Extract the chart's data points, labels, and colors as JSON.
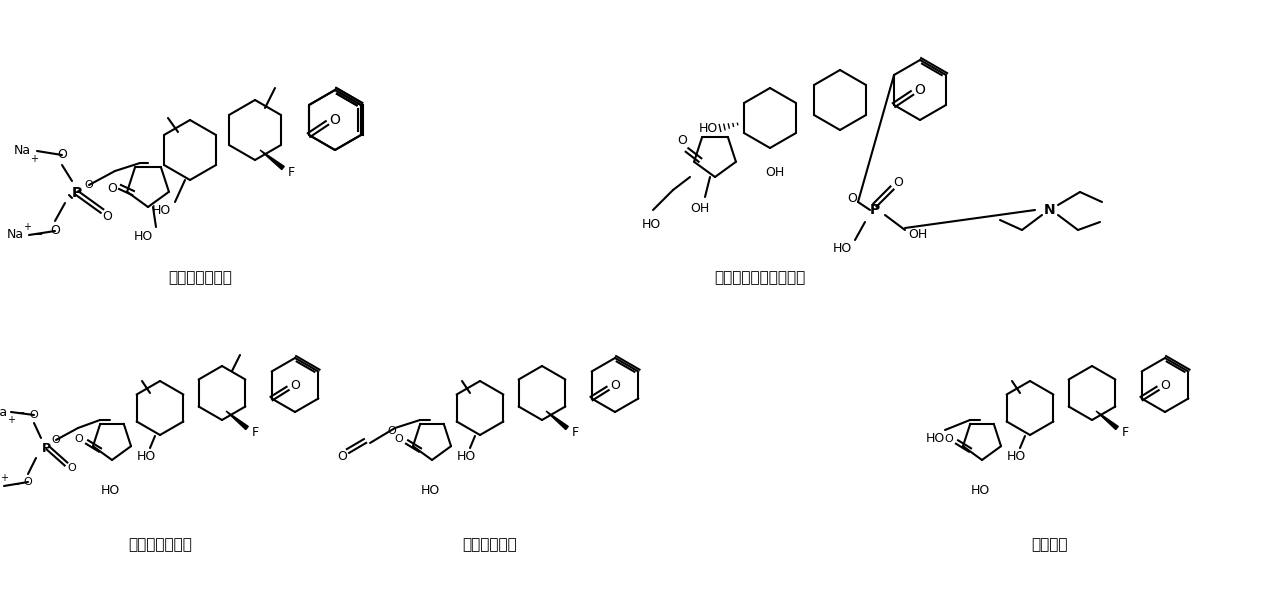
{
  "background": "#ffffff",
  "labels": [
    "地塞米松磷酸钠",
    "磷酸氢化可的松三乙胺",
    "倍他米松磷酸钠",
    "醋酸地塞米松",
    "地塞米松"
  ],
  "label_fontsize": 11,
  "label_positions_x": [
    200,
    760,
    160,
    490,
    1050
  ],
  "label_positions_y": [
    278,
    278,
    545,
    545,
    545
  ],
  "figsize": [
    12.8,
    5.97
  ]
}
